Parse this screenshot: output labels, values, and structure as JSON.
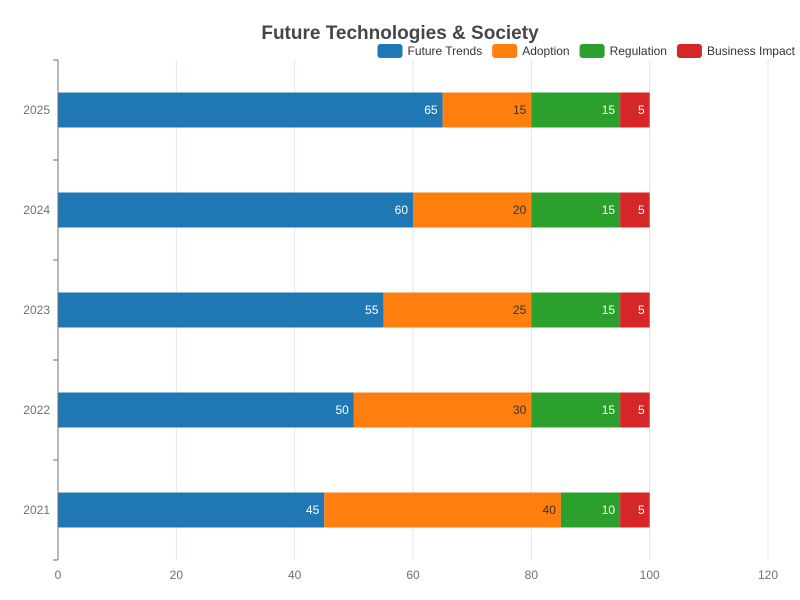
{
  "chart_data": {
    "type": "bar",
    "orientation": "horizontal",
    "stacked": true,
    "title": "Future Technologies & Society",
    "categories": [
      "2021",
      "2022",
      "2023",
      "2024",
      "2025"
    ],
    "series": [
      {
        "name": "Future Trends",
        "color": "#1f77b4",
        "label_color": "#ffffff",
        "values": [
          45,
          50,
          55,
          60,
          65
        ]
      },
      {
        "name": "Adoption",
        "color": "#ff7f0e",
        "label_color": "#333333",
        "values": [
          40,
          30,
          25,
          20,
          15
        ]
      },
      {
        "name": "Regulation",
        "color": "#2ca02c",
        "label_color": "#ffffff",
        "values": [
          10,
          15,
          15,
          15,
          15
        ]
      },
      {
        "name": "Business Impact",
        "color": "#d62728",
        "label_color": "#ffffff",
        "values": [
          5,
          5,
          5,
          5,
          5
        ]
      }
    ],
    "xlim": [
      0,
      120
    ],
    "xticks": [
      "0",
      "20",
      "40",
      "60",
      "80",
      "100",
      "120"
    ],
    "xlabel": "",
    "ylabel": "",
    "grid": "vertical",
    "legend_position": "top-right"
  }
}
